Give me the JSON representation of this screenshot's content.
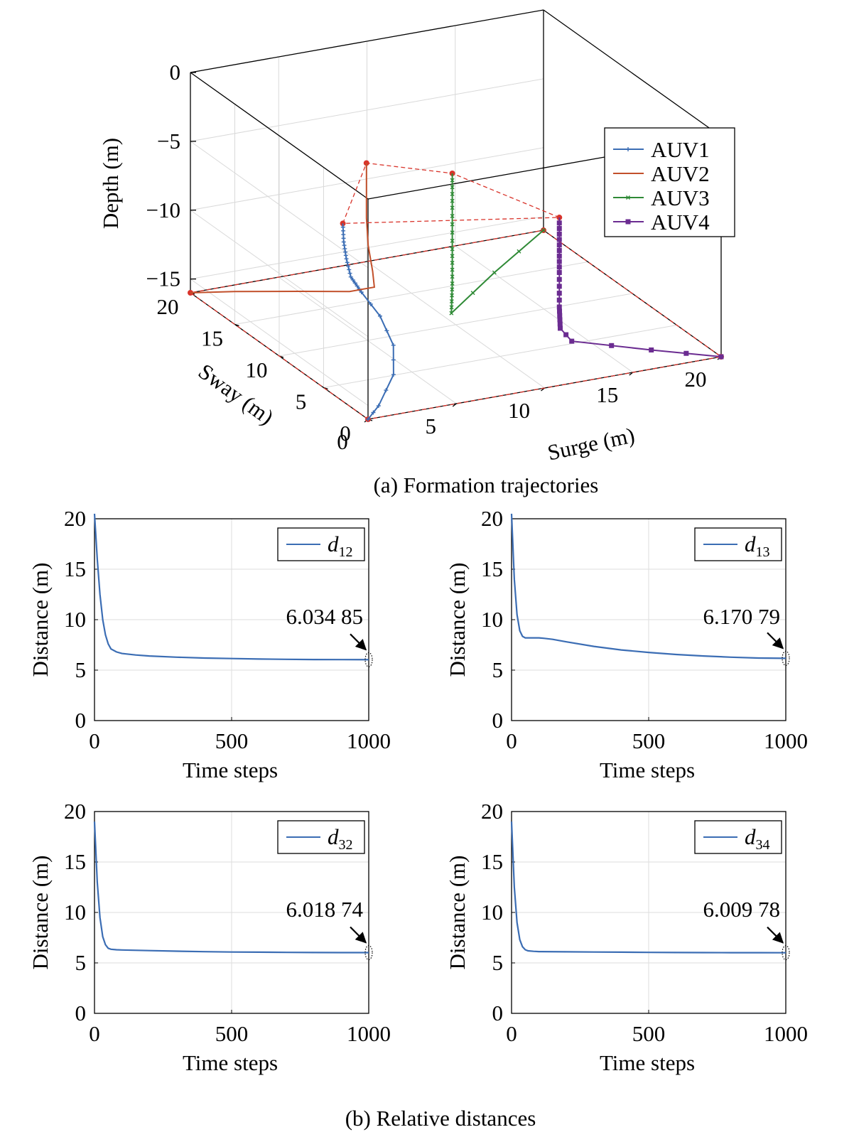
{
  "figure": {
    "caption_a": "(a) Formation trajectories",
    "caption_b": "(b) Relative distances"
  },
  "chart_data": [
    {
      "type": "line3d",
      "title": "",
      "xlabel": "Surge (m)",
      "ylabel": "Sway (m)",
      "zlabel": "Depth (m)",
      "xlim": [
        0,
        20
      ],
      "ylim": [
        0,
        20
      ],
      "zlim": [
        -16,
        0
      ],
      "xticks": [
        "0",
        "5",
        "10",
        "15",
        "20"
      ],
      "yticks": [
        "0",
        "5",
        "10",
        "15",
        "20"
      ],
      "zticks": [
        "0",
        "−5",
        "−10",
        "−15"
      ],
      "grid": true,
      "legend_position": "top-right",
      "series": [
        {
          "name": "AUV1",
          "color": "#3b6db4",
          "marker": "plus",
          "x": [
            0,
            0.9,
            2.6,
            3.5,
            3.7,
            3.5,
            3.2,
            3.1,
            3.0,
            3.0
          ],
          "y": [
            0,
            0.6,
            2.3,
            4.1,
            6.0,
            7.7,
            8.3,
            8.6,
            8.7,
            8.8
          ],
          "z": [
            -16,
            -15.5,
            -14.4,
            -13.3,
            -12.1,
            -11.1,
            -10.2,
            -9.0,
            -7.8,
            -6.5
          ]
        },
        {
          "name": "AUV2",
          "color": "#c2502b",
          "marker": "none",
          "x": [
            0,
            2.0,
            4.8,
            6.6,
            7.3,
            7.0,
            6.7,
            6.6,
            6.6,
            6.6
          ],
          "y": [
            20,
            19.0,
            17.2,
            15.2,
            13.8,
            13.4,
            13.3,
            13.3,
            13.3,
            13.3
          ],
          "z": [
            -16,
            -15.9,
            -15.7,
            -15.2,
            -14.4,
            -13.0,
            -11.0,
            -9.0,
            -7.0,
            -5.0
          ]
        },
        {
          "name": "AUV3",
          "color": "#2f8a36",
          "marker": "x",
          "x": [
            20,
            14.2,
            9.4,
            9.4,
            9.4,
            9.4,
            9.4
          ],
          "y": [
            20,
            14.0,
            9.3,
            9.2,
            9.2,
            9.2,
            9.2
          ],
          "z": [
            -16,
            -15.0,
            -14.7,
            -12.5,
            -10.0,
            -7.0,
            -4.5
          ]
        },
        {
          "name": "AUV4",
          "color": "#6b2c91",
          "marker": "square",
          "x": [
            20,
            17.0,
            13.6,
            13.2,
            13.2,
            13.2,
            13.2,
            13.2
          ],
          "y": [
            0,
            1.9,
            4.1,
            4.6,
            4.7,
            4.7,
            4.7,
            4.7
          ],
          "z": [
            -16,
            -15.7,
            -15.3,
            -14.5,
            -13.0,
            -10.5,
            -8.5,
            -6.5
          ]
        }
      ],
      "initial_formation": [
        [
          0,
          0,
          -16
        ],
        [
          0,
          20,
          -16
        ],
        [
          20,
          20,
          -16
        ],
        [
          20,
          0,
          -16
        ]
      ],
      "final_formation": [
        [
          3.0,
          8.8,
          -6.5
        ],
        [
          6.6,
          13.3,
          -5.0
        ],
        [
          9.4,
          9.2,
          -4.5
        ],
        [
          13.2,
          4.7,
          -6.5
        ]
      ]
    },
    {
      "type": "line",
      "title": "",
      "xlabel": "Time steps",
      "ylabel": "Distance (m)",
      "xlim": [
        0,
        1000
      ],
      "ylim": [
        0,
        20
      ],
      "xticks": [
        "0",
        "500",
        "1000"
      ],
      "yticks": [
        "0",
        "5",
        "10",
        "15",
        "20"
      ],
      "grid": true,
      "legend_position": "top-right",
      "legend_base": "d",
      "legend_sub": "12",
      "annotation": "6.034 85",
      "color": "#3b6db4",
      "x": [
        0,
        10,
        20,
        30,
        40,
        50,
        60,
        80,
        100,
        150,
        200,
        300,
        400,
        500,
        600,
        700,
        800,
        900,
        1000
      ],
      "y": [
        20.5,
        16.0,
        12.5,
        10.0,
        8.5,
        7.6,
        7.1,
        6.8,
        6.65,
        6.5,
        6.4,
        6.28,
        6.2,
        6.15,
        6.1,
        6.07,
        6.05,
        6.04,
        6.03485
      ]
    },
    {
      "type": "line",
      "title": "",
      "xlabel": "Time steps",
      "ylabel": "Distance (m)",
      "xlim": [
        0,
        1000
      ],
      "ylim": [
        0,
        20
      ],
      "xticks": [
        "0",
        "500",
        "1000"
      ],
      "yticks": [
        "0",
        "5",
        "10",
        "15",
        "20"
      ],
      "grid": true,
      "legend_position": "top-right",
      "legend_base": "d",
      "legend_sub": "13",
      "annotation": "6.170 79",
      "color": "#3b6db4",
      "x": [
        0,
        10,
        20,
        30,
        40,
        50,
        60,
        80,
        100,
        120,
        150,
        200,
        300,
        400,
        500,
        600,
        700,
        800,
        900,
        1000
      ],
      "y": [
        20.5,
        14.0,
        10.5,
        8.9,
        8.35,
        8.2,
        8.2,
        8.2,
        8.2,
        8.15,
        8.05,
        7.8,
        7.35,
        7.0,
        6.75,
        6.55,
        6.4,
        6.28,
        6.2,
        6.17079
      ]
    },
    {
      "type": "line",
      "title": "",
      "xlabel": "Time steps",
      "ylabel": "Distance (m)",
      "xlim": [
        0,
        1000
      ],
      "ylim": [
        0,
        20
      ],
      "xticks": [
        "0",
        "500",
        "1000"
      ],
      "yticks": [
        "0",
        "5",
        "10",
        "15",
        "20"
      ],
      "grid": true,
      "legend_position": "top-right",
      "legend_base": "d",
      "legend_sub": "32",
      "annotation": "6.018 74",
      "color": "#3b6db4",
      "x": [
        0,
        10,
        20,
        30,
        40,
        50,
        60,
        80,
        100,
        200,
        300,
        400,
        500,
        600,
        700,
        800,
        900,
        1000
      ],
      "y": [
        19.0,
        13.0,
        9.5,
        7.6,
        6.8,
        6.45,
        6.35,
        6.3,
        6.28,
        6.22,
        6.16,
        6.11,
        6.08,
        6.06,
        6.04,
        6.03,
        6.02,
        6.01874
      ]
    },
    {
      "type": "line",
      "title": "",
      "xlabel": "Time steps",
      "ylabel": "Distance (m)",
      "xlim": [
        0,
        1000
      ],
      "ylim": [
        0,
        20
      ],
      "xticks": [
        "0",
        "500",
        "1000"
      ],
      "yticks": [
        "0",
        "5",
        "10",
        "15",
        "20"
      ],
      "grid": true,
      "legend_position": "top-right",
      "legend_base": "d",
      "legend_sub": "34",
      "annotation": "6.009 78",
      "color": "#3b6db4",
      "x": [
        0,
        10,
        20,
        30,
        40,
        50,
        60,
        80,
        100,
        200,
        300,
        400,
        500,
        600,
        700,
        800,
        900,
        1000
      ],
      "y": [
        19.0,
        12.5,
        9.0,
        7.3,
        6.6,
        6.3,
        6.2,
        6.15,
        6.12,
        6.1,
        6.08,
        6.06,
        6.04,
        6.03,
        6.02,
        6.015,
        6.012,
        6.00978
      ]
    }
  ]
}
